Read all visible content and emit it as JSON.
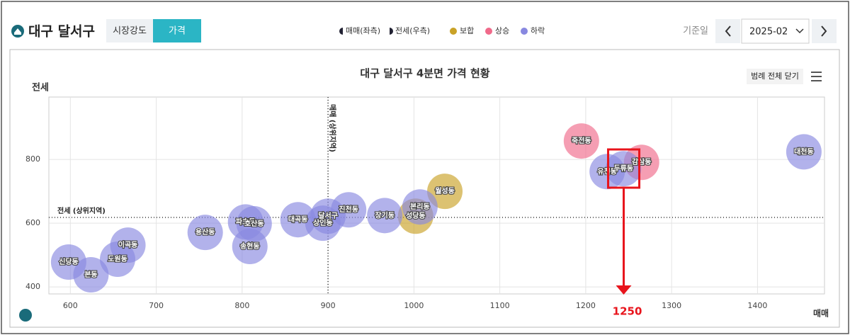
{
  "header": {
    "title": "대구 달서구",
    "tabs": [
      "시장강도",
      "가격"
    ],
    "legend": [
      "매매(좌측)",
      "전세(우측)"
    ],
    "date_label": "기준일",
    "date_value": "2025-02"
  },
  "chart_data": {
    "type": "scatter",
    "title": "대구 달서구 4분면 가격 현황",
    "legend_button": "범례 전체 닫기",
    "x_label": "매매",
    "y_label": "전세",
    "xlim": [
      575,
      1478
    ],
    "ylim": [
      378,
      996
    ],
    "xticks": [
      600,
      700,
      800,
      900,
      1000,
      1100,
      1200,
      1300,
      1400
    ],
    "yticks": [
      400,
      600,
      800
    ],
    "grid": true,
    "ref_x": {
      "value": 900,
      "label": "매매 (상위지역)"
    },
    "ref_y": {
      "value": 618,
      "label": "전세 (상위지역)"
    },
    "series": [
      {
        "name": "보합",
        "color": "#c9a227",
        "labels": [
          "성당동",
          "월성동"
        ],
        "x": [
          1002,
          1036
        ],
        "y": [
          622,
          700
        ]
      },
      {
        "name": "상승",
        "color": "#f06a8a",
        "labels": [
          "죽전동",
          "감삼동"
        ],
        "x": [
          1195,
          1265
        ],
        "y": [
          858,
          791
        ]
      },
      {
        "name": "하락",
        "color": "#8888e0",
        "labels": [
          "신당동",
          "본동",
          "도원동",
          "이곡동",
          "용산동",
          "파호동",
          "호산동",
          "송현동",
          "대곡동",
          "상인동",
          "달서구",
          "진천동",
          "장기동",
          "본리동",
          "유천동",
          "두류동",
          "대천동"
        ],
        "x": [
          598,
          624,
          655,
          667,
          757,
          804,
          814,
          809,
          865,
          894,
          900,
          924,
          966,
          1007,
          1225,
          1244,
          1454
        ],
        "y": [
          478,
          438,
          487,
          531,
          571,
          604,
          598,
          527,
          611,
          600,
          622,
          642,
          624,
          651,
          762,
          771,
          824
        ]
      }
    ],
    "annotation": {
      "x": 1250
    }
  }
}
